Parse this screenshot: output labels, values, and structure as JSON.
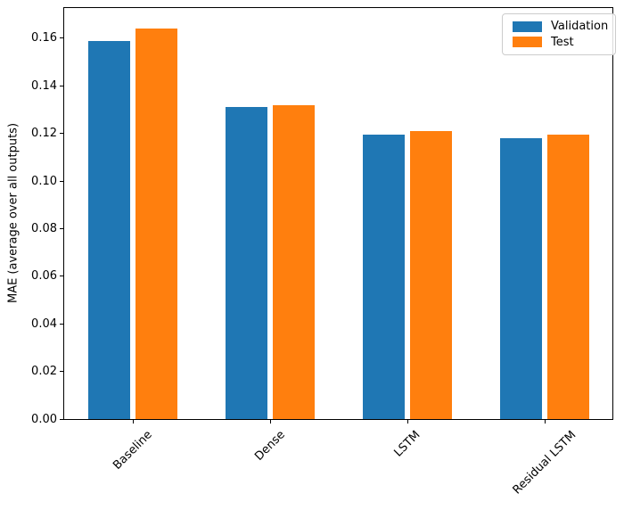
{
  "chart_data": {
    "type": "bar",
    "title": "",
    "categories": [
      "Baseline",
      "Dense",
      "LSTM",
      "Residual LSTM"
    ],
    "series": [
      {
        "name": "Validation",
        "color": "#1f77b4",
        "values": [
          0.159,
          0.131,
          0.1195,
          0.118
        ]
      },
      {
        "name": "Test",
        "color": "#ff7f0e",
        "values": [
          0.164,
          0.132,
          0.121,
          0.1195
        ]
      }
    ],
    "xlabel": "",
    "ylabel": "MAE (average over all outputs)",
    "ylim": [
      0,
      0.1731
    ],
    "yticks": [
      {
        "value": 0.0,
        "label": "0.00"
      },
      {
        "value": 0.02,
        "label": "0.02"
      },
      {
        "value": 0.04,
        "label": "0.04"
      },
      {
        "value": 0.06,
        "label": "0.06"
      },
      {
        "value": 0.08,
        "label": "0.08"
      },
      {
        "value": 0.1,
        "label": "0.10"
      },
      {
        "value": 0.12,
        "label": "0.12"
      },
      {
        "value": 0.14,
        "label": "0.14"
      },
      {
        "value": 0.16,
        "label": "0.16"
      },
      {
        "value": 0.16,
        "label": "0.16"
      }
    ],
    "xtick_rotation_deg": 45,
    "grid": false,
    "legend": {
      "position": "upper right"
    }
  }
}
